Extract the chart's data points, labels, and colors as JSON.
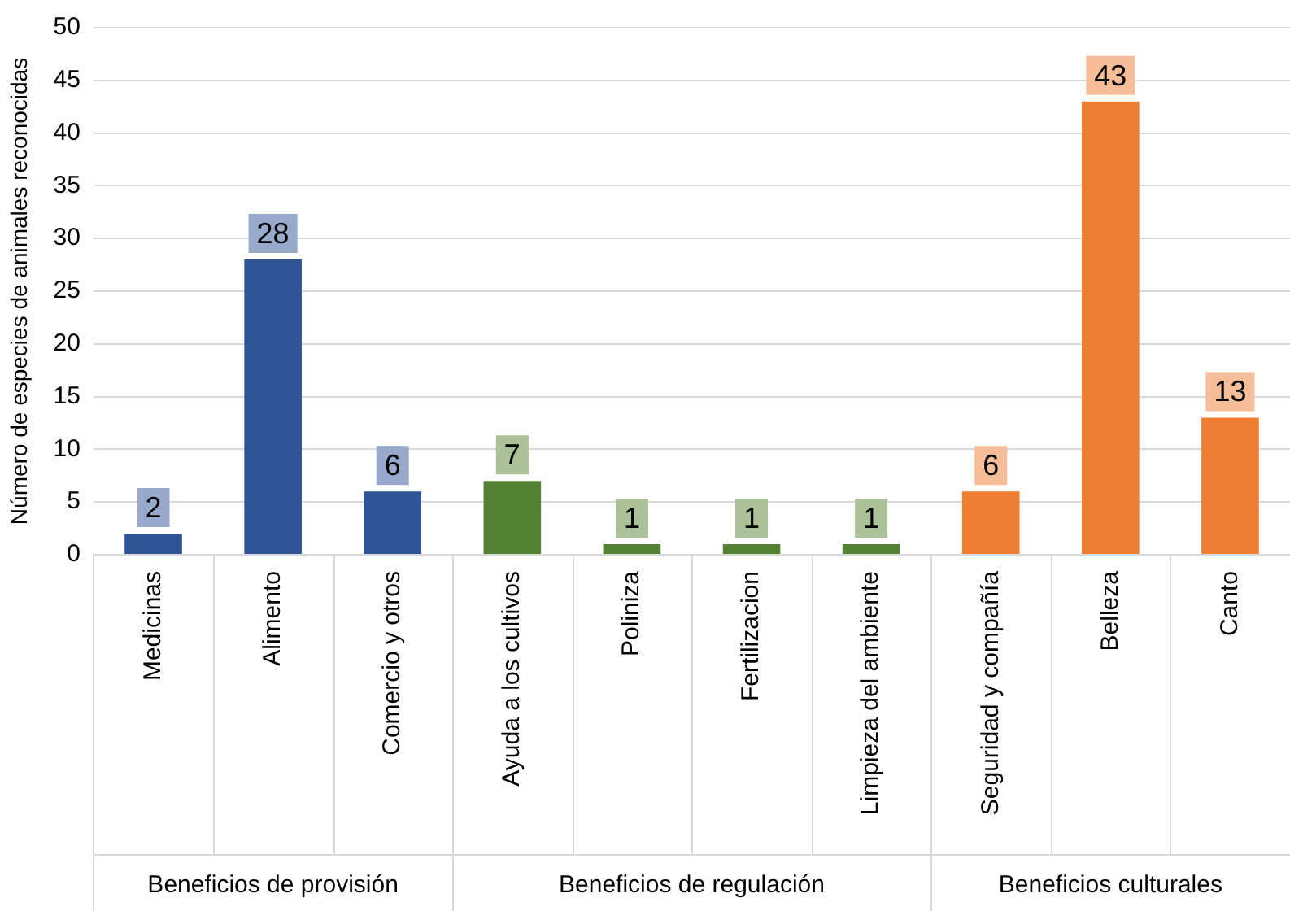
{
  "chart_data": {
    "type": "bar",
    "ylabel": "Número de especies de animales reconocidas",
    "categories": [
      "Medicinas",
      "Alimento",
      "Comercio y otros",
      "Ayuda a los cultivos",
      "Poliniza",
      "Fertilizacion",
      "Limpieza del ambiente",
      "Seguridad y compañía",
      "Belleza",
      "Canto"
    ],
    "values": [
      2,
      28,
      6,
      7,
      1,
      1,
      1,
      6,
      43,
      13
    ],
    "colors": [
      "#2f5597",
      "#2f5597",
      "#2f5597",
      "#548235",
      "#548235",
      "#548235",
      "#548235",
      "#ed7d31",
      "#ed7d31",
      "#ed7d31"
    ],
    "annotations": [
      "Beneficios de provisión",
      "Beneficios de regulación",
      "Beneficios culturales"
    ],
    "ylim": [
      0,
      50
    ],
    "yticks": [
      0,
      5,
      10,
      15,
      20,
      25,
      30,
      35,
      40,
      45,
      50
    ],
    "grid": "y",
    "data_labels": true
  }
}
